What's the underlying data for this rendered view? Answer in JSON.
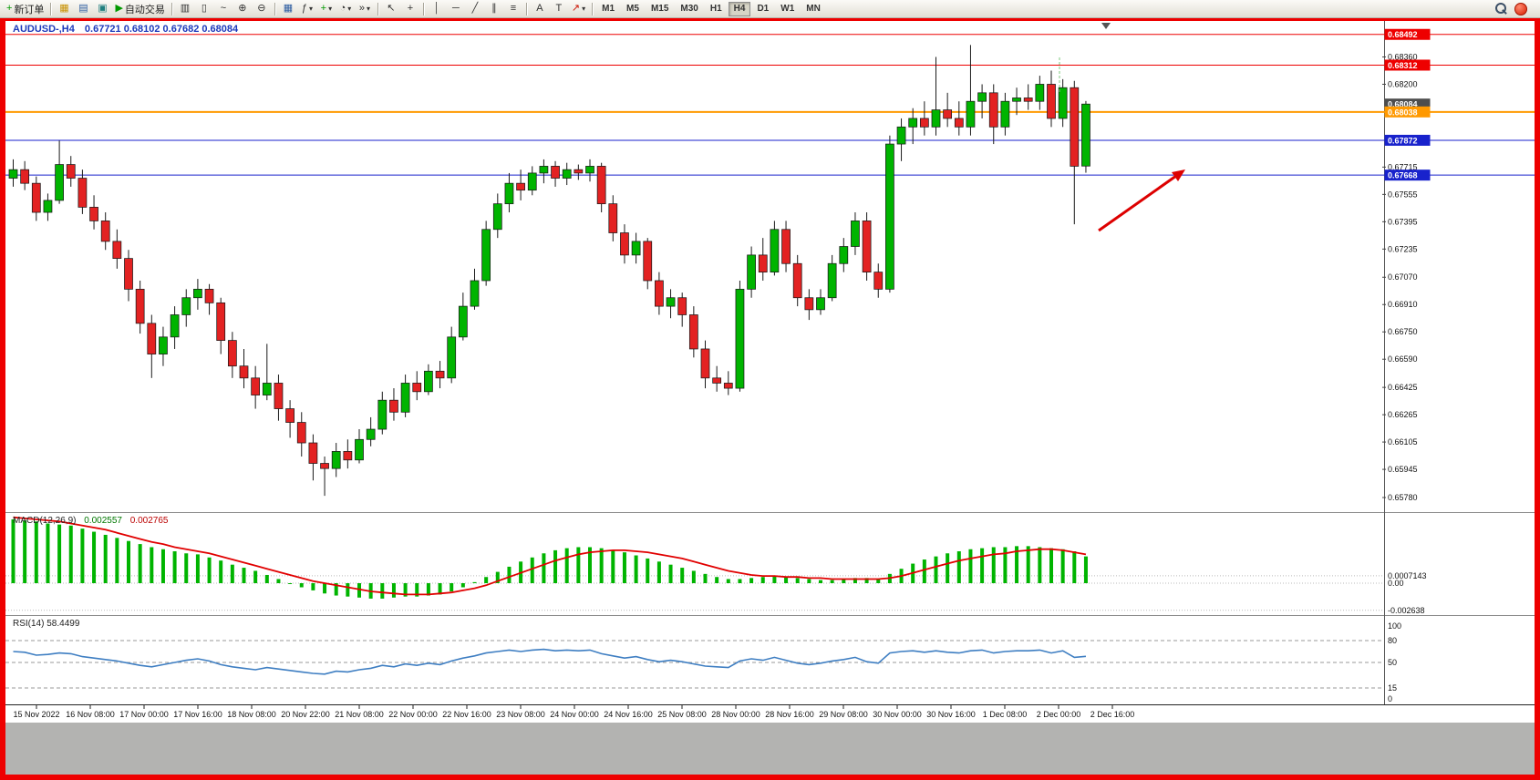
{
  "window": {
    "frame_color": "#ee0000",
    "bottom_bar_color": "#b3b3b1",
    "toolbar_bg": "#e9e6db"
  },
  "toolbar": {
    "new_order_label": "新订单",
    "autotrading_label": "自动交易",
    "glyphs": {
      "new_order": "+",
      "charts": "▦",
      "market_watch": "▤",
      "navigator": "▣",
      "play": "▶",
      "bars": "▥",
      "candles": "▯",
      "line_chart": "~",
      "zoom_in": "⊕",
      "zoom_out": "⊖",
      "tile": "▦",
      "indicators": "ƒ",
      "dropdown": "▾",
      "plus": "+",
      "clock": "◔",
      "shift": "»",
      "cursor": "↖",
      "crosshair": "+",
      "vline": "│",
      "hline": "─",
      "trendline": "╱",
      "channel": "∥",
      "fibo": "≡",
      "text": "A",
      "text_label": "T",
      "arrows": "↗"
    },
    "timeframes": [
      "M1",
      "M5",
      "M15",
      "M30",
      "H1",
      "H4",
      "D1",
      "W1",
      "MN"
    ],
    "active_timeframe": "H4"
  },
  "chart": {
    "symbol": "AUDUSD-,H4",
    "ohlc_text": "0.67721 0.68102 0.67682 0.68084"
  },
  "chart_data": {
    "type": "candlestick",
    "title": "AUDUSD-,H4 0.67721 0.68102 0.67682 0.68084",
    "colors": {
      "up": "#00b400",
      "down": "#e32222",
      "wick": "#1a1a1a",
      "macd_hist": "#00b400",
      "macd_signal": "#e10000",
      "rsi": "#3e7ec2"
    },
    "price_axis": {
      "max": 0.6856,
      "min": 0.657,
      "ticks": [
        "0.68360",
        "0.68200",
        "0.67715",
        "0.67555",
        "0.67395",
        "0.67235",
        "0.67070",
        "0.66910",
        "0.66750",
        "0.66590",
        "0.66425",
        "0.66265",
        "0.66105",
        "0.65945",
        "0.65780"
      ]
    },
    "hlines": [
      {
        "price": 0.68492,
        "label": "0.68492",
        "color": "#ee0000",
        "width": 1
      },
      {
        "price": 0.68312,
        "label": "0.68312",
        "color": "#ee0000",
        "width": 1
      },
      {
        "price": 0.68038,
        "label": "0.68038",
        "color": "#ff9900",
        "width": 2
      },
      {
        "price": 0.67872,
        "label": "0.67872",
        "color": "#1822cc",
        "width": 1
      },
      {
        "price": 0.67668,
        "label": "0.67668",
        "color": "#1822cc",
        "width": 1
      }
    ],
    "current_price": {
      "price": 0.68084,
      "label": "0.68084",
      "bg": "#4d4d4d"
    },
    "candles": [
      [
        0.6765,
        0.6776,
        0.676,
        0.677
      ],
      [
        0.677,
        0.6775,
        0.6758,
        0.6762
      ],
      [
        0.6762,
        0.6766,
        0.674,
        0.6745
      ],
      [
        0.6745,
        0.6756,
        0.674,
        0.6752
      ],
      [
        0.6752,
        0.6787,
        0.675,
        0.6773
      ],
      [
        0.6773,
        0.6778,
        0.676,
        0.6765
      ],
      [
        0.6765,
        0.677,
        0.6744,
        0.6748
      ],
      [
        0.6748,
        0.6755,
        0.6735,
        0.674
      ],
      [
        0.674,
        0.6745,
        0.6723,
        0.6728
      ],
      [
        0.6728,
        0.6735,
        0.6712,
        0.6718
      ],
      [
        0.6718,
        0.6723,
        0.6693,
        0.67
      ],
      [
        0.67,
        0.6705,
        0.6674,
        0.668
      ],
      [
        0.668,
        0.6685,
        0.6648,
        0.6662
      ],
      [
        0.6662,
        0.6678,
        0.6655,
        0.6672
      ],
      [
        0.6672,
        0.669,
        0.6665,
        0.6685
      ],
      [
        0.6685,
        0.67,
        0.6678,
        0.6695
      ],
      [
        0.6695,
        0.6706,
        0.6688,
        0.67
      ],
      [
        0.67,
        0.6703,
        0.6685,
        0.6692
      ],
      [
        0.6692,
        0.6695,
        0.6662,
        0.667
      ],
      [
        0.667,
        0.6675,
        0.6648,
        0.6655
      ],
      [
        0.6655,
        0.6665,
        0.6642,
        0.6648
      ],
      [
        0.6648,
        0.6655,
        0.663,
        0.6638
      ],
      [
        0.6638,
        0.6668,
        0.6635,
        0.6645
      ],
      [
        0.6645,
        0.665,
        0.6623,
        0.663
      ],
      [
        0.663,
        0.6635,
        0.6613,
        0.6622
      ],
      [
        0.6622,
        0.6628,
        0.6602,
        0.661
      ],
      [
        0.661,
        0.6615,
        0.6588,
        0.6598
      ],
      [
        0.6598,
        0.6602,
        0.6579,
        0.6595
      ],
      [
        0.6595,
        0.661,
        0.659,
        0.6605
      ],
      [
        0.6605,
        0.6612,
        0.6595,
        0.66
      ],
      [
        0.66,
        0.6618,
        0.6598,
        0.6612
      ],
      [
        0.6612,
        0.6625,
        0.6608,
        0.6618
      ],
      [
        0.6618,
        0.664,
        0.6615,
        0.6635
      ],
      [
        0.6635,
        0.6642,
        0.6623,
        0.6628
      ],
      [
        0.6628,
        0.665,
        0.6625,
        0.6645
      ],
      [
        0.6645,
        0.6652,
        0.6635,
        0.664
      ],
      [
        0.664,
        0.6656,
        0.6638,
        0.6652
      ],
      [
        0.6652,
        0.6658,
        0.6642,
        0.6648
      ],
      [
        0.6648,
        0.6678,
        0.6645,
        0.6672
      ],
      [
        0.6672,
        0.6698,
        0.667,
        0.669
      ],
      [
        0.669,
        0.6712,
        0.6688,
        0.6705
      ],
      [
        0.6705,
        0.674,
        0.6702,
        0.6735
      ],
      [
        0.6735,
        0.6756,
        0.673,
        0.675
      ],
      [
        0.675,
        0.6768,
        0.6745,
        0.6762
      ],
      [
        0.6762,
        0.677,
        0.6752,
        0.6758
      ],
      [
        0.6758,
        0.6772,
        0.6755,
        0.6768
      ],
      [
        0.6768,
        0.6776,
        0.6762,
        0.6772
      ],
      [
        0.6772,
        0.6775,
        0.676,
        0.6765
      ],
      [
        0.6765,
        0.6774,
        0.6761,
        0.677
      ],
      [
        0.677,
        0.6773,
        0.6764,
        0.6768
      ],
      [
        0.6768,
        0.6776,
        0.6763,
        0.6772
      ],
      [
        0.6772,
        0.6774,
        0.6745,
        0.675
      ],
      [
        0.675,
        0.6755,
        0.6728,
        0.6733
      ],
      [
        0.6733,
        0.6738,
        0.6715,
        0.672
      ],
      [
        0.672,
        0.6733,
        0.6715,
        0.6728
      ],
      [
        0.6728,
        0.673,
        0.67,
        0.6705
      ],
      [
        0.6705,
        0.671,
        0.6685,
        0.669
      ],
      [
        0.669,
        0.67,
        0.6683,
        0.6695
      ],
      [
        0.6695,
        0.6698,
        0.6678,
        0.6685
      ],
      [
        0.6685,
        0.669,
        0.666,
        0.6665
      ],
      [
        0.6665,
        0.667,
        0.6642,
        0.6648
      ],
      [
        0.6648,
        0.6655,
        0.664,
        0.6645
      ],
      [
        0.6645,
        0.6652,
        0.6638,
        0.6642
      ],
      [
        0.6642,
        0.6705,
        0.664,
        0.67
      ],
      [
        0.67,
        0.6725,
        0.6695,
        0.672
      ],
      [
        0.672,
        0.673,
        0.6705,
        0.671
      ],
      [
        0.671,
        0.674,
        0.6708,
        0.6735
      ],
      [
        0.6735,
        0.674,
        0.671,
        0.6715
      ],
      [
        0.6715,
        0.672,
        0.669,
        0.6695
      ],
      [
        0.6695,
        0.67,
        0.6682,
        0.6688
      ],
      [
        0.6688,
        0.67,
        0.6685,
        0.6695
      ],
      [
        0.6695,
        0.672,
        0.6693,
        0.6715
      ],
      [
        0.6715,
        0.673,
        0.671,
        0.6725
      ],
      [
        0.6725,
        0.6745,
        0.672,
        0.674
      ],
      [
        0.674,
        0.6745,
        0.6705,
        0.671
      ],
      [
        0.671,
        0.6715,
        0.6695,
        0.67
      ],
      [
        0.67,
        0.679,
        0.6698,
        0.6785
      ],
      [
        0.6785,
        0.68,
        0.6775,
        0.6795
      ],
      [
        0.6795,
        0.6806,
        0.6785,
        0.68
      ],
      [
        0.68,
        0.681,
        0.679,
        0.6795
      ],
      [
        0.6795,
        0.6836,
        0.679,
        0.6805
      ],
      [
        0.6805,
        0.6815,
        0.6795,
        0.68
      ],
      [
        0.68,
        0.681,
        0.679,
        0.6795
      ],
      [
        0.6795,
        0.6843,
        0.679,
        0.681
      ],
      [
        0.681,
        0.682,
        0.68,
        0.6815
      ],
      [
        0.6815,
        0.682,
        0.6785,
        0.6795
      ],
      [
        0.6795,
        0.6815,
        0.679,
        0.681
      ],
      [
        0.681,
        0.6818,
        0.6802,
        0.6812
      ],
      [
        0.6812,
        0.682,
        0.6805,
        0.681
      ],
      [
        0.681,
        0.6825,
        0.6805,
        0.682
      ],
      [
        0.682,
        0.6828,
        0.6795,
        0.68
      ],
      [
        0.68,
        0.6823,
        0.6795,
        0.6818
      ],
      [
        0.6818,
        0.6822,
        0.6738,
        0.6772
      ],
      [
        0.67721,
        0.68102,
        0.67682,
        0.68084
      ]
    ],
    "time_labels": [
      "15 Nov 2022",
      "16 Nov 08:00",
      "17 Nov 00:00",
      "17 Nov 16:00",
      "18 Nov 08:00",
      "20 Nov 22:00",
      "21 Nov 08:00",
      "22 Nov 00:00",
      "22 Nov 16:00",
      "23 Nov 08:00",
      "24 Nov 00:00",
      "24 Nov 16:00",
      "25 Nov 08:00",
      "28 Nov 00:00",
      "28 Nov 16:00",
      "29 Nov 08:00",
      "30 Nov 00:00",
      "30 Nov 16:00",
      "1 Dec 08:00",
      "2 Dec 00:00",
      "2 Dec 16:00"
    ],
    "macd": {
      "label": "MACD(12,26,9)",
      "value_main": "0.002557",
      "value_signal": "0.002765",
      "axis": [
        {
          "value": 0.0007143,
          "label": "0.0007143"
        },
        {
          "value": 0,
          "label": "0.00"
        },
        {
          "value": -0.002638,
          "label": "-0.002638"
        }
      ],
      "histogram": [
        0.0062,
        0.0061,
        0.006,
        0.0058,
        0.0057,
        0.0056,
        0.0053,
        0.005,
        0.0047,
        0.0044,
        0.0041,
        0.0038,
        0.0035,
        0.0033,
        0.0031,
        0.0029,
        0.0028,
        0.0025,
        0.0022,
        0.0018,
        0.0015,
        0.0012,
        0.0008,
        0.0004,
        0,
        -0.0004,
        -0.0007,
        -0.001,
        -0.0012,
        -0.0013,
        -0.0014,
        -0.0015,
        -0.0015,
        -0.0014,
        -0.0013,
        -0.0013,
        -0.0012,
        -0.0011,
        -0.0008,
        -0.0004,
        0.0001,
        0.0006,
        0.0011,
        0.0016,
        0.0021,
        0.0025,
        0.0029,
        0.0032,
        0.0034,
        0.0035,
        0.0035,
        0.0034,
        0.0032,
        0.003,
        0.0027,
        0.0024,
        0.0021,
        0.0018,
        0.0015,
        0.0012,
        0.0009,
        0.0006,
        0.0004,
        0.0004,
        0.0005,
        0.0006,
        0.0007,
        0.0006,
        0.0005,
        0.0004,
        0.0003,
        0.0003,
        0.0004,
        0.0005,
        0.0005,
        0.0004,
        0.0009,
        0.0014,
        0.0019,
        0.0023,
        0.0026,
        0.0029,
        0.0031,
        0.0033,
        0.0034,
        0.0035,
        0.0035,
        0.0036,
        0.0036,
        0.0035,
        0.0034,
        0.0033,
        0.0031,
        0.0026
      ],
      "signal": [
        0.0064,
        0.0063,
        0.0062,
        0.0061,
        0.006,
        0.0058,
        0.0056,
        0.0054,
        0.0052,
        0.0049,
        0.0046,
        0.0043,
        0.004,
        0.0038,
        0.0035,
        0.0033,
        0.0031,
        0.0029,
        0.0026,
        0.0023,
        0.002,
        0.0017,
        0.0014,
        0.0011,
        0.0008,
        0.0005,
        0.0002,
        0,
        -0.0002,
        -0.0004,
        -0.0006,
        -0.0008,
        -0.0009,
        -0.001,
        -0.0011,
        -0.0011,
        -0.0011,
        -0.001,
        -0.0009,
        -0.0007,
        -0.0005,
        -0.0002,
        0.0002,
        0.0006,
        0.001,
        0.0014,
        0.0018,
        0.0022,
        0.0025,
        0.0028,
        0.003,
        0.0031,
        0.0032,
        0.0032,
        0.0031,
        0.003,
        0.0028,
        0.0026,
        0.0024,
        0.0021,
        0.0018,
        0.0015,
        0.0012,
        0.001,
        0.0008,
        0.0007,
        0.0007,
        0.0006,
        0.0006,
        0.0005,
        0.0005,
        0.0004,
        0.0004,
        0.0004,
        0.0004,
        0.0004,
        0.0005,
        0.0007,
        0.001,
        0.0013,
        0.0016,
        0.0019,
        0.0022,
        0.0024,
        0.0026,
        0.0028,
        0.0029,
        0.0031,
        0.0032,
        0.0033,
        0.0033,
        0.0032,
        0.003,
        0.0028
      ]
    },
    "rsi": {
      "label": "RSI(14)",
      "value_text": "58.4499",
      "levels": [
        "100",
        "80",
        "50",
        "15",
        "0"
      ],
      "level_values": [
        100,
        80,
        50,
        15,
        0
      ],
      "dashed_levels": [
        80,
        50,
        15
      ],
      "values": [
        65,
        64,
        60,
        61,
        63,
        62,
        58,
        56,
        54,
        52,
        49,
        46,
        44,
        47,
        50,
        53,
        55,
        52,
        47,
        44,
        42,
        40,
        43,
        41,
        39,
        37,
        35,
        34,
        38,
        37,
        40,
        42,
        46,
        44,
        48,
        46,
        49,
        47,
        52,
        56,
        59,
        63,
        65,
        67,
        65,
        67,
        68,
        66,
        67,
        66,
        67,
        62,
        59,
        56,
        58,
        54,
        51,
        53,
        51,
        48,
        45,
        44,
        43,
        52,
        55,
        53,
        57,
        53,
        49,
        47,
        49,
        52,
        54,
        57,
        51,
        49,
        63,
        65,
        66,
        64,
        66,
        64,
        63,
        66,
        67,
        63,
        65,
        66,
        66,
        67,
        63,
        66,
        57,
        58.4
      ]
    },
    "annotations": [
      {
        "type": "arrow",
        "color": "#dd0000",
        "points_to_price": 0.677
      },
      {
        "type": "vertical-dash-marker",
        "color": "#7dc87d"
      }
    ]
  }
}
